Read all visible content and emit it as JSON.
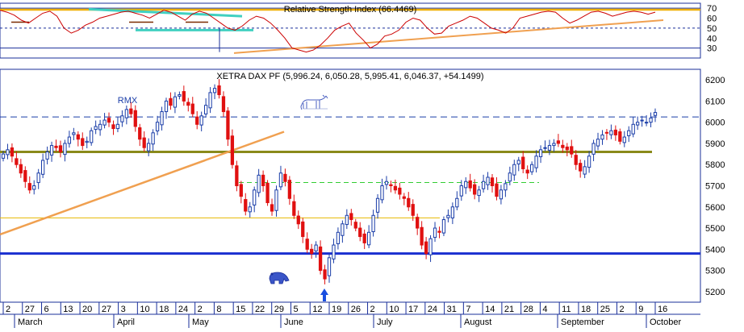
{
  "chart_data": [
    {
      "panel": "rsi",
      "type": "line",
      "title": "Relative Strength Index (66.4469)",
      "ylim": [
        20,
        75
      ],
      "yticks": [
        30,
        40,
        50,
        60,
        70
      ],
      "reference_lines": [
        30,
        50,
        70
      ],
      "series": [
        {
          "name": "",
          "color": "#cc0000",
          "values": [
            68,
            66,
            63,
            58,
            55,
            60,
            65,
            67,
            62,
            50,
            45,
            48,
            53,
            56,
            60,
            62,
            64,
            66,
            67,
            65,
            63,
            60,
            64,
            68,
            66,
            62,
            58,
            64,
            67,
            65,
            60,
            55,
            50,
            48,
            52,
            58,
            62,
            60,
            55,
            48,
            40,
            30,
            28,
            26,
            28,
            33,
            40,
            48,
            52,
            55,
            45,
            38,
            30,
            34,
            42,
            44,
            48,
            56,
            60,
            58,
            50,
            44,
            45,
            52,
            55,
            58,
            62,
            60,
            55,
            50,
            48,
            45,
            50,
            60,
            62,
            64,
            66,
            67,
            66,
            60,
            55,
            58,
            62,
            66,
            67,
            65,
            62,
            64,
            66,
            67,
            66,
            64,
            66
          ]
        }
      ],
      "annotation_colors": {
        "overbought_line": "#f0b000",
        "trend_lines": "#f0a050",
        "support": "#40d0c0"
      }
    },
    {
      "panel": "price",
      "type": "candlestick",
      "title": "XETRA DAX PF (5,996.24, 6,050.28, 5,995.41, 6,046.37, +54.1499)",
      "ylim": [
        5150,
        6250
      ],
      "yticks": [
        5200,
        5300,
        5400,
        5500,
        5600,
        5700,
        5800,
        5900,
        6000,
        6100,
        6200
      ],
      "up_color": "#1a3da8",
      "down_color": "#e01010",
      "closes": [
        5850,
        5870,
        5840,
        5800,
        5760,
        5720,
        5680,
        5700,
        5760,
        5820,
        5860,
        5890,
        5880,
        5860,
        5900,
        5930,
        5950,
        5920,
        5890,
        5910,
        5960,
        5980,
        5990,
        6010,
        6000,
        5970,
        5990,
        6030,
        6060,
        6040,
        5980,
        5920,
        5880,
        5900,
        5950,
        6000,
        6050,
        6100,
        6080,
        6120,
        6130,
        6100,
        6080,
        6040,
        5990,
        6030,
        6080,
        6140,
        6160,
        6130,
        6050,
        5920,
        5800,
        5700,
        5650,
        5580,
        5600,
        5680,
        5750,
        5700,
        5620,
        5580,
        5680,
        5760,
        5720,
        5640,
        5560,
        5520,
        5460,
        5400,
        5380,
        5420,
        5300,
        5260,
        5360,
        5420,
        5480,
        5520,
        5560,
        5540,
        5500,
        5460,
        5430,
        5480,
        5560,
        5640,
        5700,
        5720,
        5700,
        5680,
        5660,
        5640,
        5600,
        5560,
        5500,
        5420,
        5380,
        5450,
        5500,
        5480,
        5540,
        5560,
        5600,
        5640,
        5700,
        5720,
        5690,
        5660,
        5680,
        5720,
        5740,
        5700,
        5650,
        5680,
        5710,
        5760,
        5800,
        5820,
        5780,
        5760,
        5800,
        5840,
        5870,
        5880,
        5890,
        5900,
        5900,
        5880,
        5870,
        5850,
        5800,
        5770,
        5790,
        5840,
        5900,
        5920,
        5940,
        5950,
        5960,
        5940,
        5910,
        5930,
        5960,
        5990,
        6000,
        6010,
        6000,
        6020,
        6046
      ],
      "horizontal_lines": [
        {
          "value": 6025,
          "style": "dashed",
          "color": "#1a3da8"
        },
        {
          "value": 5860,
          "style": "solid",
          "color": "#8a8a1a"
        },
        {
          "value": 5715,
          "style": "dashed",
          "color": "#33cc33"
        },
        {
          "value": 5548,
          "style": "solid",
          "color": "#e6b800"
        },
        {
          "value": 5380,
          "style": "solid",
          "color": "#1a2fd0"
        }
      ],
      "annotations": [
        "RMX"
      ],
      "x_day_labels": [
        "2",
        "27",
        "6",
        "13",
        "20",
        "27",
        "3",
        "10",
        "18",
        "24",
        "2",
        "8",
        "15",
        "22",
        "29",
        "5",
        "12",
        "19",
        "26",
        "2",
        "10",
        "17",
        "24",
        "31",
        "7",
        "14",
        "21",
        "28",
        "4",
        "11",
        "18",
        "25",
        "2",
        "9",
        "16"
      ],
      "x_month_labels": [
        "March",
        "April",
        "May",
        "June",
        "July",
        "August",
        "September",
        "October"
      ]
    }
  ],
  "icons": {
    "bull": "bull-icon",
    "bear": "bear-icon",
    "signal": "up-arrow-icon"
  }
}
